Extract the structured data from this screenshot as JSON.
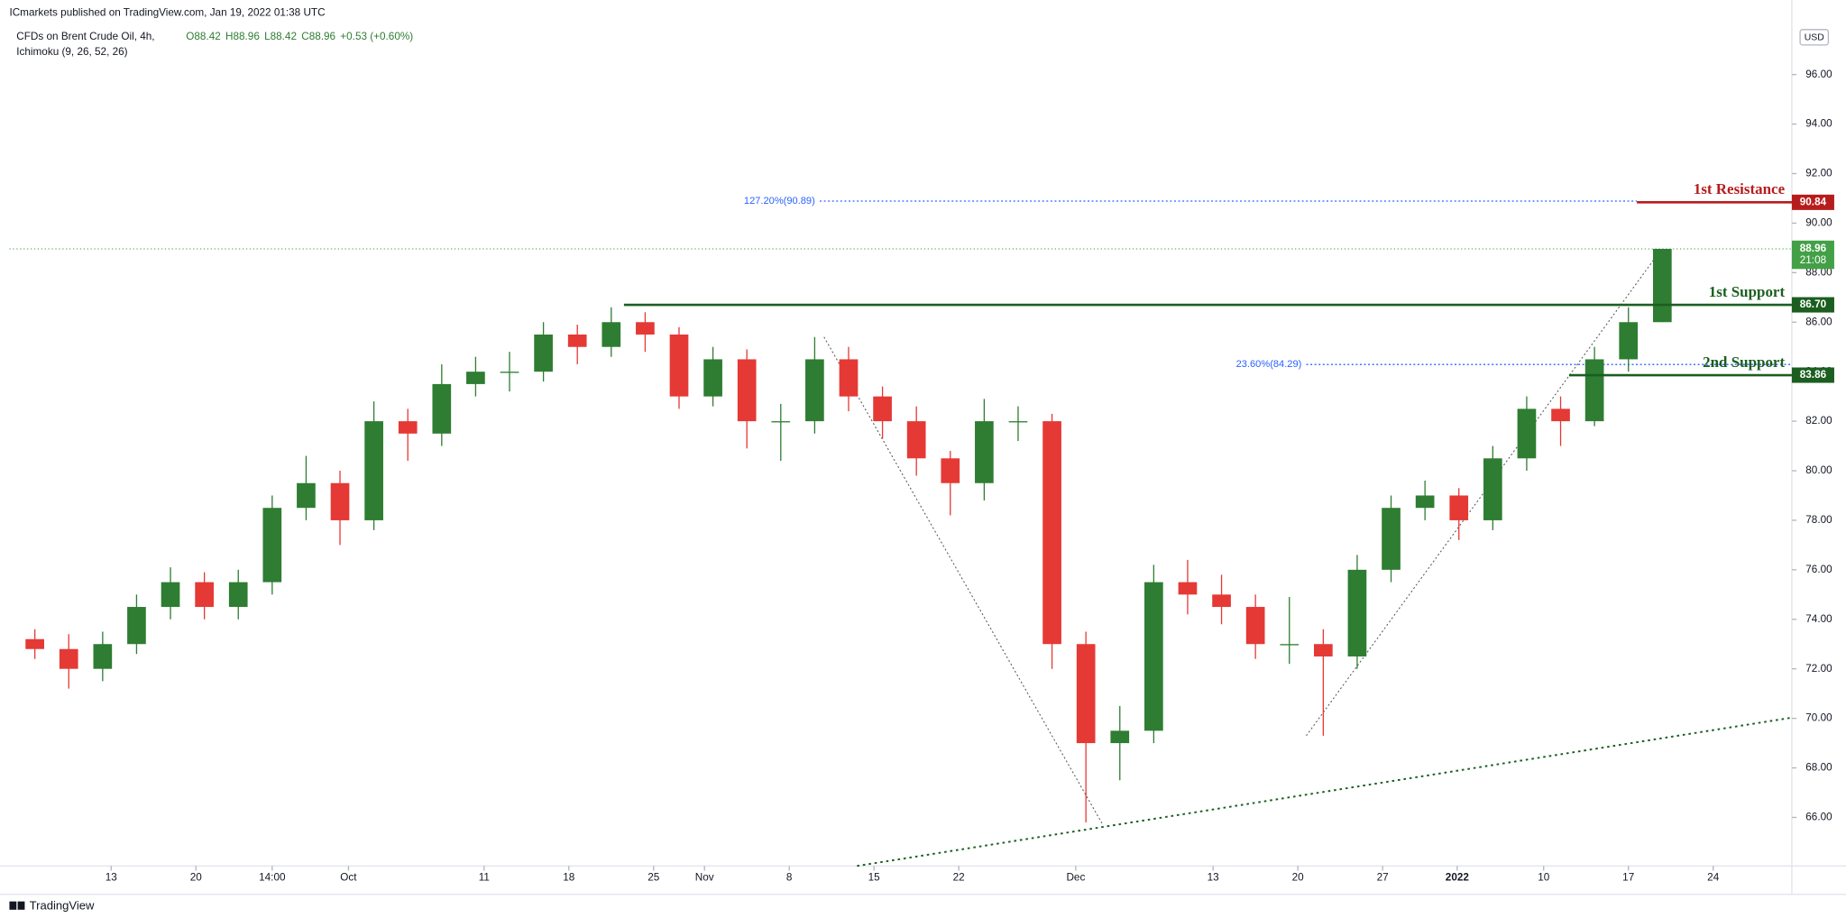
{
  "chart_data": {
    "type": "candlestick",
    "publisher": "ICmarkets published on TradingView.com, Jan 19, 2022 01:38 UTC",
    "symbol": "CFDs on Brent Crude Oil, 4h,",
    "ohlc_legend": [
      "O88.42",
      "H88.96",
      "L88.42",
      "C88.96",
      "+0.53 (+0.60%)"
    ],
    "indicator": "Ichimoku (9, 26, 52, 26)",
    "currency": "USD",
    "branding": "TradingView",
    "up_color": "#2e7d32",
    "down_color": "#e53935",
    "x": [
      1.5,
      3.5,
      5.5,
      7.5,
      9.5,
      11.5,
      13.5,
      15.5,
      17.5,
      19.5,
      21.5,
      23.5,
      25.5,
      27.5,
      29.5,
      31.5,
      33.5,
      35.5,
      37.5,
      39.5,
      41.5,
      43.5,
      45.5,
      47.5,
      49.5,
      51.5,
      53.5,
      55.5,
      57.5,
      59.5,
      61.5,
      63.5,
      65.5,
      67.5,
      69.5,
      71.5,
      73.5,
      75.5,
      77.5,
      79.5,
      81.5,
      83.5,
      85.5,
      87.5,
      89.5,
      91.5,
      93.5,
      95.5,
      97.5
    ],
    "open": [
      73.2,
      72.8,
      72.0,
      73.0,
      74.5,
      75.5,
      74.5,
      75.5,
      78.5,
      79.5,
      78.0,
      82.0,
      81.5,
      83.5,
      84.0,
      84.0,
      85.5,
      85.0,
      86.0,
      85.5,
      83.0,
      84.5,
      82.0,
      82.0,
      84.5,
      83.0,
      82.0,
      80.5,
      79.5,
      82.0,
      82.0,
      73.0,
      69.0,
      69.5,
      75.5,
      75.0,
      74.5,
      73.0,
      73.0,
      72.5,
      76.0,
      78.5,
      79.0,
      78.0,
      80.5,
      82.5,
      82.0,
      84.5,
      86.0
    ],
    "high": [
      73.6,
      73.4,
      73.5,
      75.0,
      76.1,
      75.9,
      76.0,
      79.0,
      80.6,
      80.0,
      82.8,
      82.5,
      84.3,
      84.6,
      84.8,
      86.0,
      85.9,
      86.6,
      86.4,
      85.8,
      85.0,
      84.9,
      82.7,
      85.4,
      85.0,
      83.4,
      82.6,
      80.8,
      82.9,
      82.6,
      82.3,
      73.5,
      70.5,
      76.2,
      76.4,
      75.8,
      75.0,
      74.9,
      73.6,
      76.6,
      79.0,
      79.6,
      79.3,
      81.0,
      83.0,
      83.0,
      85.0,
      86.6,
      88.96
    ],
    "low": [
      72.4,
      71.2,
      71.5,
      72.6,
      74.0,
      74.0,
      74.0,
      75.0,
      78.0,
      77.0,
      77.6,
      80.4,
      81.0,
      83.0,
      83.2,
      83.6,
      84.3,
      84.6,
      84.8,
      82.5,
      82.6,
      80.9,
      80.4,
      81.5,
      82.4,
      81.3,
      79.8,
      78.2,
      78.8,
      81.2,
      72.0,
      65.8,
      67.5,
      69.0,
      74.2,
      73.8,
      72.4,
      72.2,
      69.3,
      72.0,
      75.5,
      78.0,
      77.2,
      77.6,
      80.0,
      81.0,
      81.8,
      84.0,
      86.0
    ],
    "close": [
      72.8,
      72.0,
      73.0,
      74.5,
      75.5,
      74.5,
      75.5,
      78.5,
      79.5,
      78.0,
      82.0,
      81.5,
      83.5,
      84.0,
      84.0,
      85.5,
      85.0,
      86.0,
      85.5,
      83.0,
      84.5,
      82.0,
      82.0,
      84.5,
      83.0,
      82.0,
      80.5,
      79.5,
      82.0,
      82.0,
      73.0,
      69.0,
      69.5,
      75.5,
      75.0,
      74.5,
      73.0,
      73.0,
      72.5,
      76.0,
      78.5,
      79.0,
      78.0,
      80.5,
      82.5,
      82.0,
      84.5,
      86.0,
      88.96
    ],
    "xlim": [
      0,
      105.14
    ],
    "xticks": [
      {
        "value": 6.0,
        "label": "13"
      },
      {
        "value": 11.0,
        "label": "20"
      },
      {
        "value": 15.5,
        "label": "14:00"
      },
      {
        "value": 20.0,
        "label": "Oct"
      },
      {
        "value": 28.0,
        "label": "11"
      },
      {
        "value": 33.0,
        "label": "18"
      },
      {
        "value": 38.0,
        "label": "25"
      },
      {
        "value": 41.0,
        "label": "Nov"
      },
      {
        "value": 46.0,
        "label": "8"
      },
      {
        "value": 51.0,
        "label": "15"
      },
      {
        "value": 56.0,
        "label": "22"
      },
      {
        "value": 62.9,
        "label": "Dec"
      },
      {
        "value": 71.0,
        "label": "13"
      },
      {
        "value": 76.0,
        "label": "20"
      },
      {
        "value": 81.0,
        "label": "27"
      },
      {
        "value": 85.4,
        "label": "2022"
      },
      {
        "value": 90.5,
        "label": "10"
      },
      {
        "value": 95.5,
        "label": "17"
      },
      {
        "value": 100.5,
        "label": "24"
      }
    ],
    "ylim": [
      64.04,
      98.15
    ],
    "yticks": [
      {
        "value": 66,
        "label": "66.00"
      },
      {
        "value": 68,
        "label": "68.00"
      },
      {
        "value": 70,
        "label": "70.00"
      },
      {
        "value": 72,
        "label": "72.00"
      },
      {
        "value": 74,
        "label": "74.00"
      },
      {
        "value": 76,
        "label": "76.00"
      },
      {
        "value": 78,
        "label": "78.00"
      },
      {
        "value": 80,
        "label": "80.00"
      },
      {
        "value": 82,
        "label": "82.00"
      },
      {
        "value": 84,
        "label": "84.00"
      },
      {
        "value": 86,
        "label": "86.00"
      },
      {
        "value": 88,
        "label": "88.00"
      },
      {
        "value": 90,
        "label": "90.00"
      },
      {
        "value": 92,
        "label": "92.00"
      },
      {
        "value": 94,
        "label": "94.00"
      },
      {
        "value": 96,
        "label": "96.00"
      }
    ],
    "price_line": {
      "value": 88.96,
      "countdown": "21:08",
      "color": "#43a047"
    },
    "levels": [
      {
        "name": "1st Resistance",
        "value": 90.84,
        "label": "90.84",
        "color": "#b71c1c",
        "x": [
          96.0,
          105.14
        ]
      },
      {
        "name": "1st Support",
        "value": 86.7,
        "label": "86.70",
        "color": "#1b5e20",
        "x": [
          36.25,
          105.14
        ]
      },
      {
        "name": "2nd Support",
        "value": 83.86,
        "label": "83.86",
        "color": "#1b5e20",
        "x": [
          92.0,
          105.14
        ]
      }
    ],
    "fib_levels": [
      {
        "label": "127.20%(90.89)",
        "value": 90.89,
        "x": [
          47.8,
          96.0
        ]
      },
      {
        "label": "23.60%(84.29)",
        "value": 84.29,
        "x": [
          76.5,
          105.14
        ]
      }
    ],
    "fib_color": "#2962ff",
    "trendlines": [
      {
        "x": [
          50.0,
          105.14
        ],
        "y": [
          64.04,
          70.03
        ],
        "color": "#1b5e20"
      },
      {
        "x": [
          48.05,
          64.5
        ],
        "y": [
          85.4,
          65.7
        ],
        "color": "#555555"
      },
      {
        "x": [
          76.5,
          97.4
        ],
        "y": [
          69.3,
          88.9
        ],
        "color": "#555555"
      }
    ]
  }
}
